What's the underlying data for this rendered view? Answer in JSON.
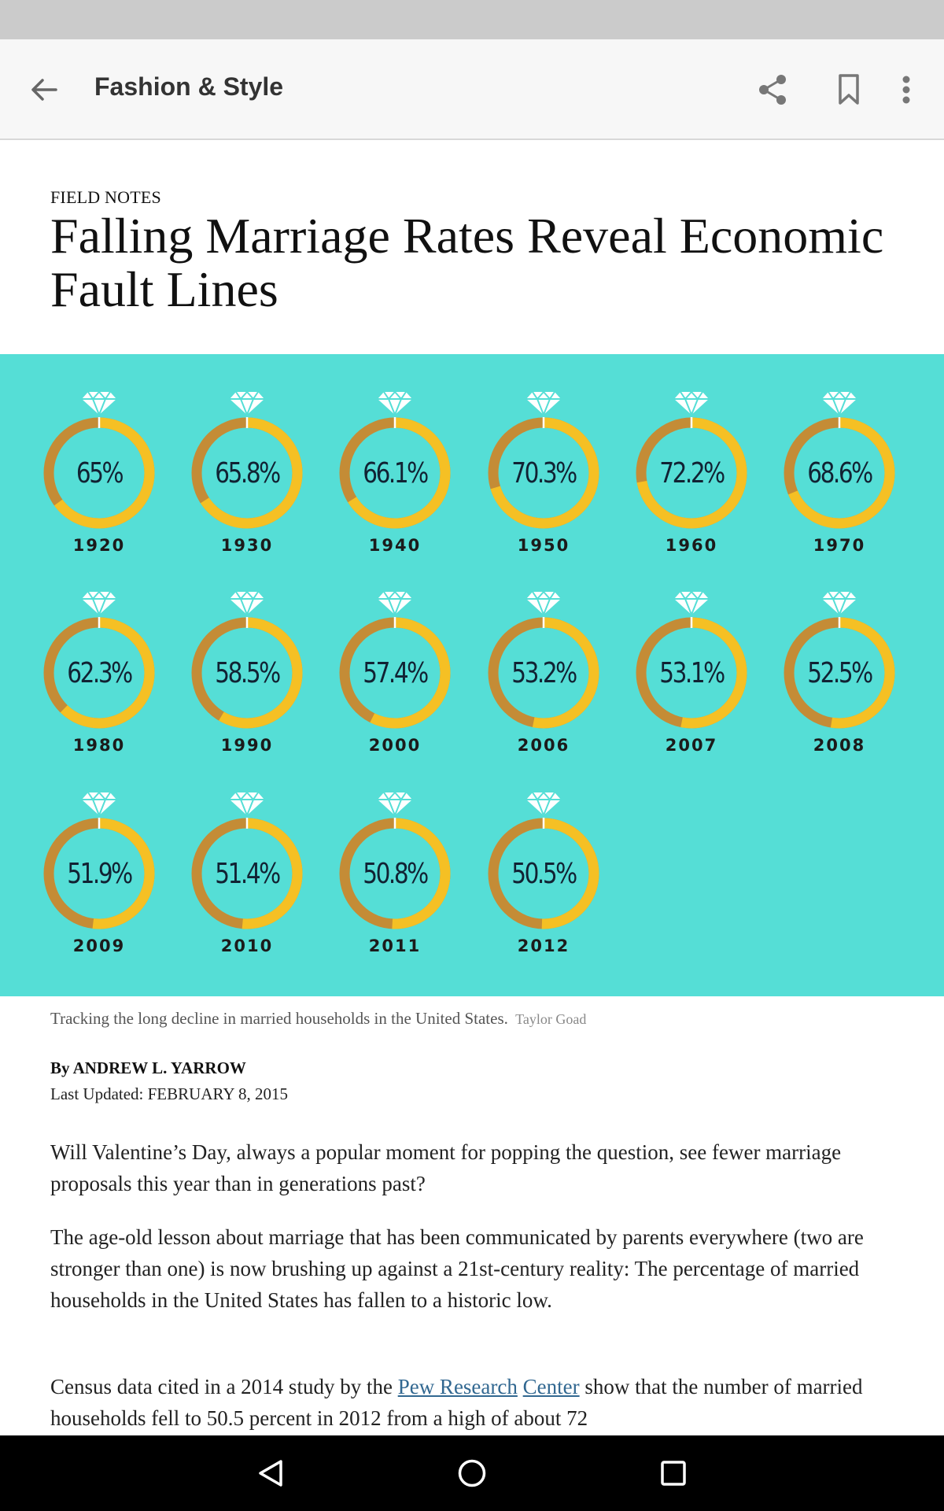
{
  "app_bar": {
    "section_title": "Fashion & Style",
    "icons": {
      "back": "arrow-left-icon",
      "share": "share-icon",
      "bookmark": "bookmark-icon",
      "more": "more-vertical-icon"
    }
  },
  "article": {
    "kicker": "FIELD NOTES",
    "headline": "Falling Marriage Rates Reveal Economic Fault Lines",
    "caption": "Tracking the long decline in married households in the United States.",
    "credit": "Taylor Goad",
    "byline": "By ANDREW L. YARROW",
    "updated": "Last Updated: FEBRUARY 8, 2015",
    "paragraphs": [
      "Will Valentine’s Day, always a popular moment for popping the question, see fewer marriage proposals this year than in generations past?",
      "The age-old lesson about marriage that has been communicated by parents everywhere (two are stronger than one) is now brushing up against a 21st-century reality: The percentage of married households in the United States has fallen to a historic low."
    ],
    "para3": {
      "before": "Census data cited in a 2014 study by the ",
      "link1": "Pew Research",
      "between": " ",
      "link2": "Center",
      "after": " show that the number of married households fell to 50.5 percent in 2012 from a high of about 72"
    }
  },
  "graphic": {
    "colors": {
      "background": "#55ded6",
      "ring_light": "#f5c024",
      "ring_dark": "#c48c36",
      "diamond": "#ffffff"
    },
    "rings": [
      {
        "year": "1920",
        "label": "65%",
        "value": 65
      },
      {
        "year": "1930",
        "label": "65.8%",
        "value": 65.8
      },
      {
        "year": "1940",
        "label": "66.1%",
        "value": 66.1
      },
      {
        "year": "1950",
        "label": "70.3%",
        "value": 70.3
      },
      {
        "year": "1960",
        "label": "72.2%",
        "value": 72.2
      },
      {
        "year": "1970",
        "label": "68.6%",
        "value": 68.6
      },
      {
        "year": "1980",
        "label": "62.3%",
        "value": 62.3
      },
      {
        "year": "1990",
        "label": "58.5%",
        "value": 58.5
      },
      {
        "year": "2000",
        "label": "57.4%",
        "value": 57.4
      },
      {
        "year": "2006",
        "label": "53.2%",
        "value": 53.2
      },
      {
        "year": "2007",
        "label": "53.1%",
        "value": 53.1
      },
      {
        "year": "2008",
        "label": "52.5%",
        "value": 52.5
      },
      {
        "year": "2009",
        "label": "51.9%",
        "value": 51.9
      },
      {
        "year": "2010",
        "label": "51.4%",
        "value": 51.4
      },
      {
        "year": "2011",
        "label": "50.8%",
        "value": 50.8
      },
      {
        "year": "2012",
        "label": "50.5%",
        "value": 50.5
      }
    ]
  },
  "nav_bar": {
    "icons": {
      "back": "triangle-back-icon",
      "home": "circle-home-icon",
      "recents": "square-recents-icon"
    }
  }
}
